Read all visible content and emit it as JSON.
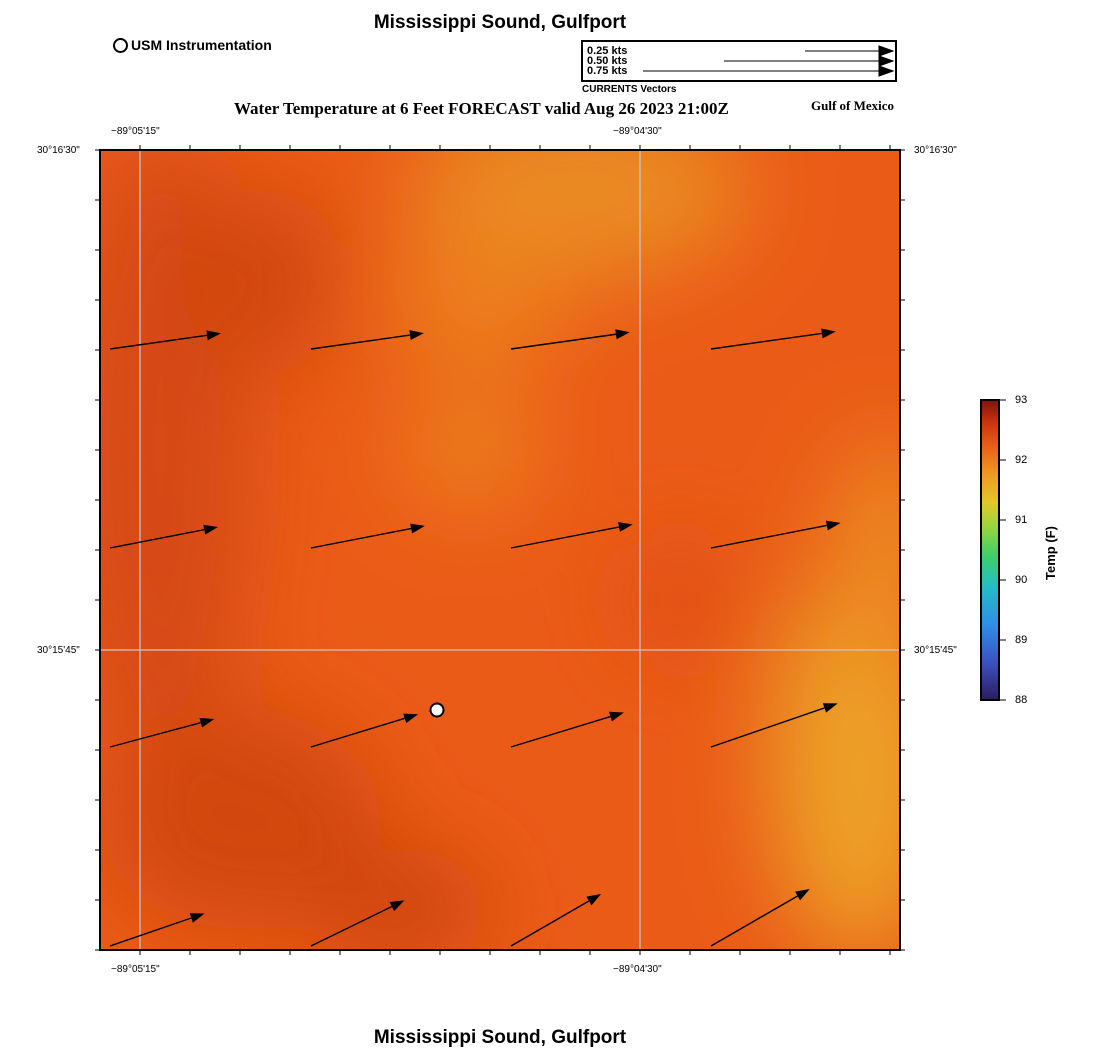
{
  "title_top": "Mississippi Sound, Gulfport",
  "title_bottom": "Mississippi Sound, Gulfport",
  "subtitle": "Water Temperature at 6 Feet FORECAST valid Aug 26 2023 21:00Z",
  "region_label": "Gulf of Mexico",
  "station_legend": "USM Instrumentation",
  "vector_legend": {
    "caption": "CURRENTS Vectors",
    "scales": [
      {
        "label": "0.25 kts",
        "speed_kts": 0.25
      },
      {
        "label": "0.50 kts",
        "speed_kts": 0.5
      },
      {
        "label": "0.75 kts",
        "speed_kts": 0.75
      }
    ]
  },
  "axes": {
    "lon_ticks": [
      "−89°05'15\"",
      "−89°04'30\""
    ],
    "lat_ticks": [
      "30°16'30\"",
      "30°15'45\""
    ]
  },
  "colorbar": {
    "title": "Temp (F)",
    "min": 88,
    "max": 93,
    "ticks": [
      "93",
      "92",
      "91",
      "90",
      "89",
      "88"
    ]
  },
  "colors": {
    "field_base": "#ea5b18",
    "field_warm": "#d64a12",
    "field_cool": "#e98a22",
    "grid": "#c8c8c8"
  },
  "current_vectors": [
    {
      "row": 0,
      "col": 0,
      "speed_kts": 0.56,
      "bearing_deg": 82
    },
    {
      "row": 0,
      "col": 1,
      "speed_kts": 0.57,
      "bearing_deg": 82
    },
    {
      "row": 0,
      "col": 2,
      "speed_kts": 0.6,
      "bearing_deg": 82
    },
    {
      "row": 0,
      "col": 3,
      "speed_kts": 0.63,
      "bearing_deg": 82
    },
    {
      "row": 1,
      "col": 0,
      "speed_kts": 0.55,
      "bearing_deg": 79
    },
    {
      "row": 1,
      "col": 1,
      "speed_kts": 0.58,
      "bearing_deg": 79
    },
    {
      "row": 1,
      "col": 2,
      "speed_kts": 0.62,
      "bearing_deg": 79
    },
    {
      "row": 1,
      "col": 3,
      "speed_kts": 0.66,
      "bearing_deg": 79
    },
    {
      "row": 2,
      "col": 0,
      "speed_kts": 0.54,
      "bearing_deg": 75
    },
    {
      "row": 2,
      "col": 1,
      "speed_kts": 0.56,
      "bearing_deg": 73
    },
    {
      "row": 2,
      "col": 2,
      "speed_kts": 0.59,
      "bearing_deg": 73
    },
    {
      "row": 2,
      "col": 3,
      "speed_kts": 0.67,
      "bearing_deg": 71
    },
    {
      "row": 3,
      "col": 0,
      "speed_kts": 0.5,
      "bearing_deg": 71
    },
    {
      "row": 3,
      "col": 1,
      "speed_kts": 0.52,
      "bearing_deg": 64
    },
    {
      "row": 3,
      "col": 2,
      "speed_kts": 0.52,
      "bearing_deg": 60
    },
    {
      "row": 3,
      "col": 3,
      "speed_kts": 0.57,
      "bearing_deg": 60
    }
  ]
}
